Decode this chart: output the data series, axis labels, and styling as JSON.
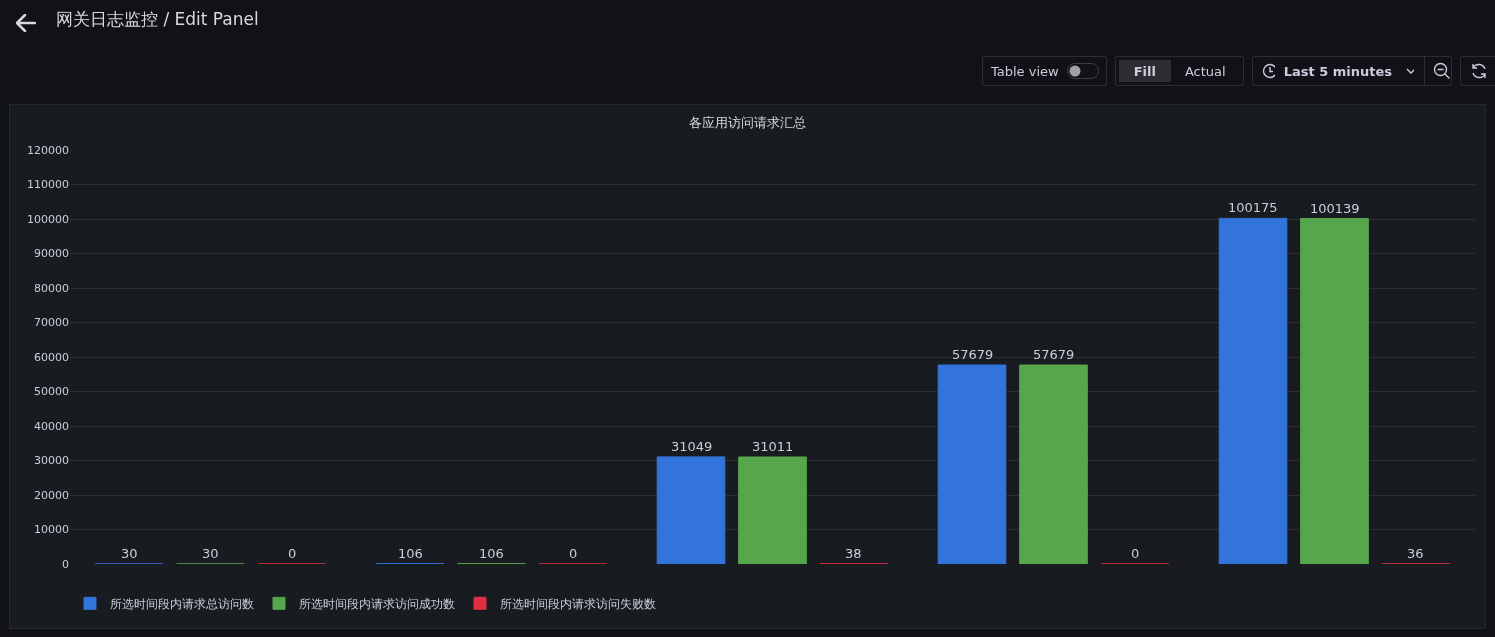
{
  "chart_data": {
    "type": "bar",
    "title": "各应用访问请求汇总",
    "annotations": [
      "网关日志监控 / Edit Panel",
      "Table view",
      "Fill",
      "Actual",
      "Last 5 minutes"
    ],
    "categories": [
      null,
      null,
      null,
      null,
      null
    ],
    "series": [
      {
        "name": "所选时间段内请求总访问数",
        "color": "#3274d9",
        "values": [
          30,
          106,
          31049,
          57679,
          100175
        ]
      },
      {
        "name": "所选时间段内请求访问成功数",
        "color": "#56a64b",
        "values": [
          30,
          106,
          31011,
          57679,
          100139
        ]
      },
      {
        "name": "所选时间段内请求访问失败数",
        "color": "#e02f44",
        "values": [
          0,
          0,
          38,
          0,
          36
        ]
      }
    ],
    "ylim": [
      0,
      120000
    ],
    "yticks": [
      0,
      10000,
      20000,
      30000,
      40000,
      50000,
      60000,
      70000,
      80000,
      90000,
      100000,
      110000,
      120000
    ],
    "grid": "y",
    "legend": "bottom left",
    "data_labels": true,
    "tick_labels": "y"
  }
}
